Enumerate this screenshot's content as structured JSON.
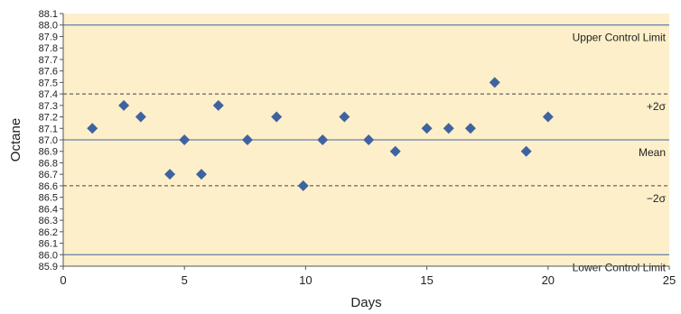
{
  "chart_data": {
    "type": "scatter",
    "xlabel": "Days",
    "ylabel": "Octane",
    "xlim": [
      0,
      25
    ],
    "ylim": [
      85.9,
      88.1
    ],
    "x_ticks": [
      0,
      5,
      10,
      15,
      20,
      25
    ],
    "y_ticks": [
      "85.9",
      "86.0",
      "86.1",
      "86.2",
      "86.3",
      "86.4",
      "86.5",
      "86.6",
      "86.7",
      "86.8",
      "86.9",
      "87.0",
      "87.1",
      "87.2",
      "87.3",
      "87.4",
      "87.5",
      "87.6",
      "87.7",
      "87.8",
      "87.9",
      "88.0",
      "88.1"
    ],
    "grid": false,
    "points": [
      {
        "x": 1.2,
        "y": 87.1
      },
      {
        "x": 2.5,
        "y": 87.3
      },
      {
        "x": 3.2,
        "y": 87.2
      },
      {
        "x": 4.4,
        "y": 86.7
      },
      {
        "x": 5.0,
        "y": 87.0
      },
      {
        "x": 5.7,
        "y": 86.7
      },
      {
        "x": 6.4,
        "y": 87.3
      },
      {
        "x": 7.6,
        "y": 87.0
      },
      {
        "x": 8.8,
        "y": 87.2
      },
      {
        "x": 9.9,
        "y": 86.6
      },
      {
        "x": 10.7,
        "y": 87.0
      },
      {
        "x": 11.6,
        "y": 87.2
      },
      {
        "x": 12.6,
        "y": 87.0
      },
      {
        "x": 13.7,
        "y": 86.9
      },
      {
        "x": 15.0,
        "y": 87.1
      },
      {
        "x": 15.9,
        "y": 87.1
      },
      {
        "x": 16.8,
        "y": 87.1
      },
      {
        "x": 17.8,
        "y": 87.5
      },
      {
        "x": 19.1,
        "y": 86.9
      },
      {
        "x": 20.0,
        "y": 87.2
      }
    ],
    "reference_lines": [
      {
        "name": "upper-control-limit",
        "label": "Upper Control Limit",
        "y": 88.0,
        "style": "solid"
      },
      {
        "name": "plus-2-sigma",
        "label": "+2σ",
        "y": 87.4,
        "style": "dashed"
      },
      {
        "name": "mean",
        "label": "Mean",
        "y": 87.0,
        "style": "solid"
      },
      {
        "name": "minus-2-sigma",
        "label": "−2σ",
        "y": 86.6,
        "style": "dashed"
      },
      {
        "name": "lower-control-limit",
        "label": "Lower Control Limit",
        "y": 86.0,
        "style": "solid"
      }
    ],
    "colors": {
      "background": "#fcefc9",
      "marker": "#3f63a0",
      "solid_line": "#3f63a0",
      "dashed_line": "#444444",
      "axis": "#555555"
    }
  }
}
